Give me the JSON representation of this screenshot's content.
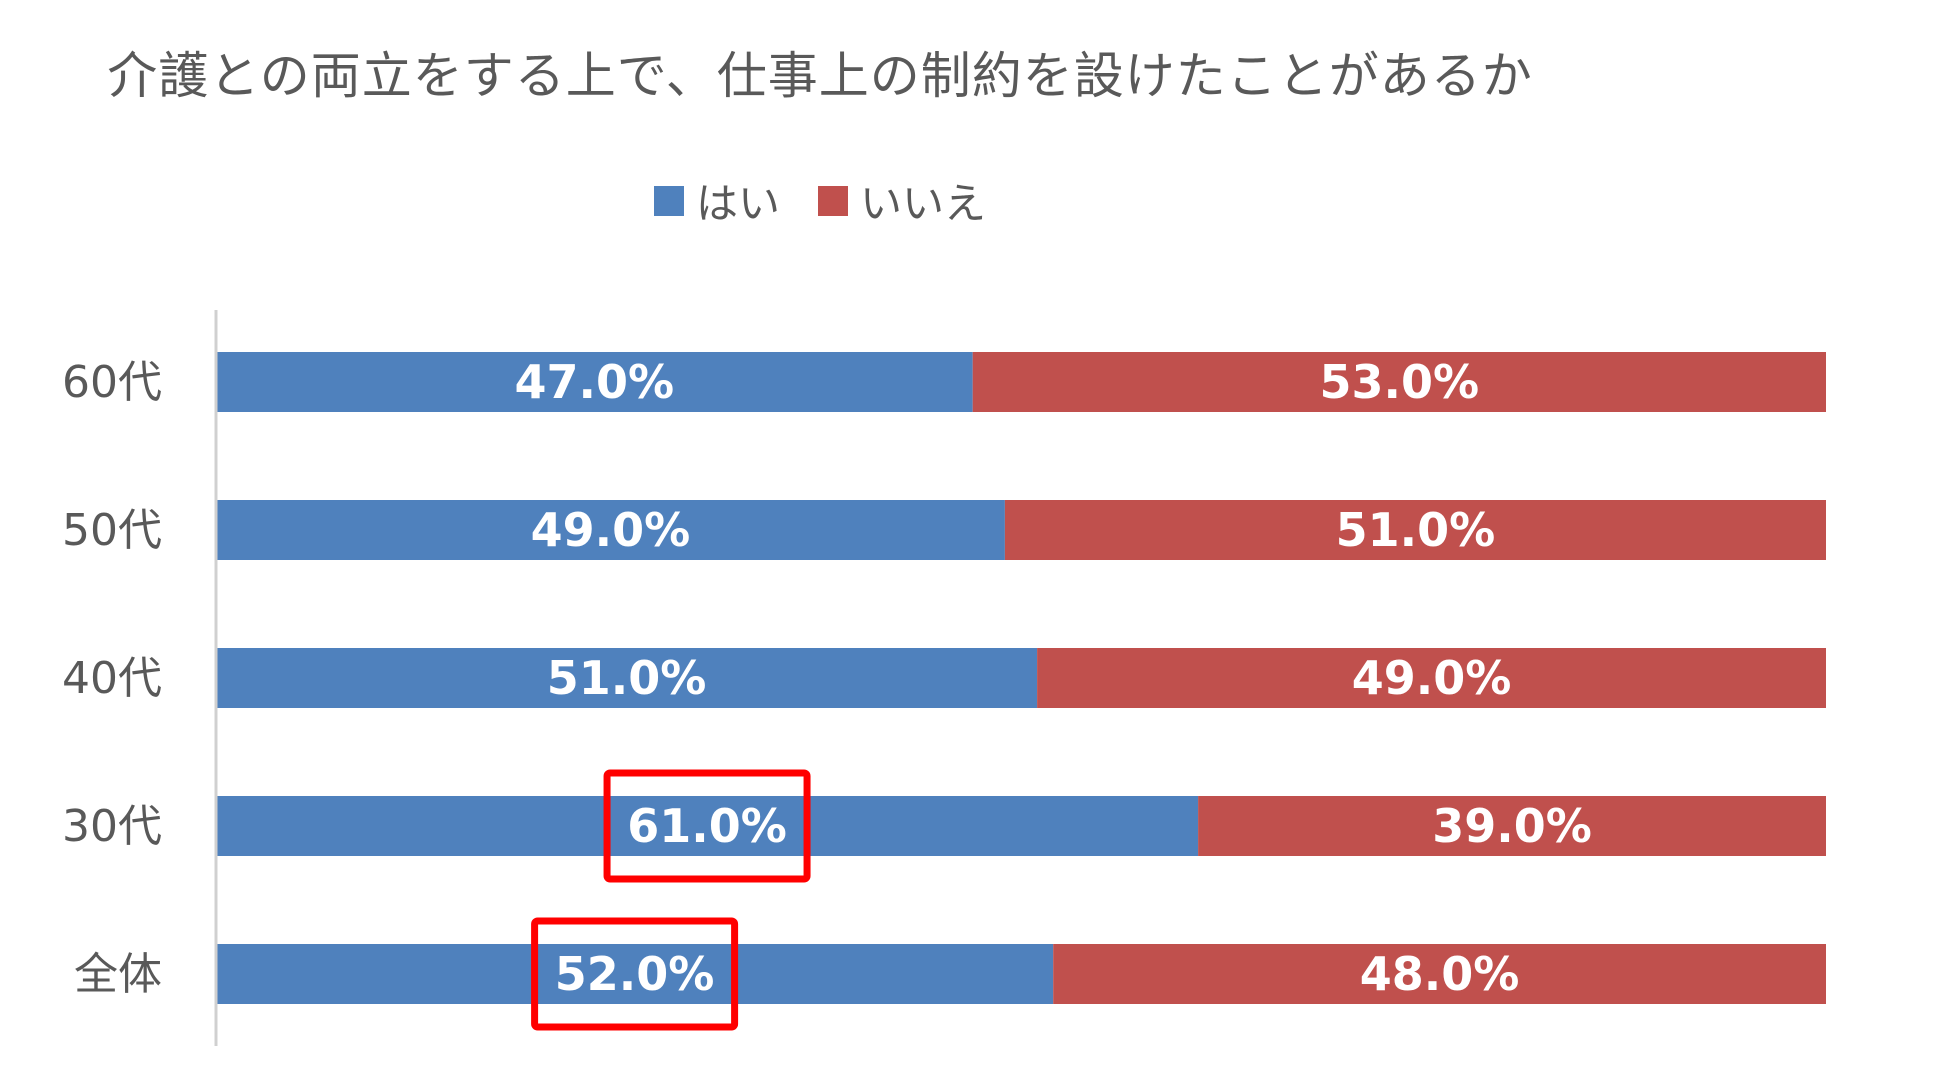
{
  "chart_data": {
    "type": "bar",
    "orientation": "horizontal",
    "stacked": true,
    "percent_stacked": true,
    "title": "介護との両立をする上で、仕事上の制約を設けたことがあるか",
    "categories": [
      "60代",
      "50代",
      "40代",
      "30代",
      "全体"
    ],
    "series": [
      {
        "name": "はい",
        "color": "#4F81BD",
        "values": [
          47.0,
          49.0,
          51.0,
          61.0,
          52.0
        ],
        "labels": [
          "47.0%",
          "49.0%",
          "51.0%",
          "61.0%",
          "52.0%"
        ]
      },
      {
        "name": "いいえ",
        "color": "#C0504D",
        "values": [
          53.0,
          51.0,
          49.0,
          39.0,
          48.0
        ],
        "labels": [
          "53.0%",
          "51.0%",
          "49.0%",
          "39.0%",
          "48.0%"
        ]
      }
    ],
    "xlim": [
      0,
      100
    ],
    "legend_position": "top",
    "grid": false,
    "highlighted": [
      {
        "category": "30代",
        "series": "はい"
      },
      {
        "category": "全体",
        "series": "はい"
      }
    ],
    "highlight_color": "#FF0000"
  }
}
